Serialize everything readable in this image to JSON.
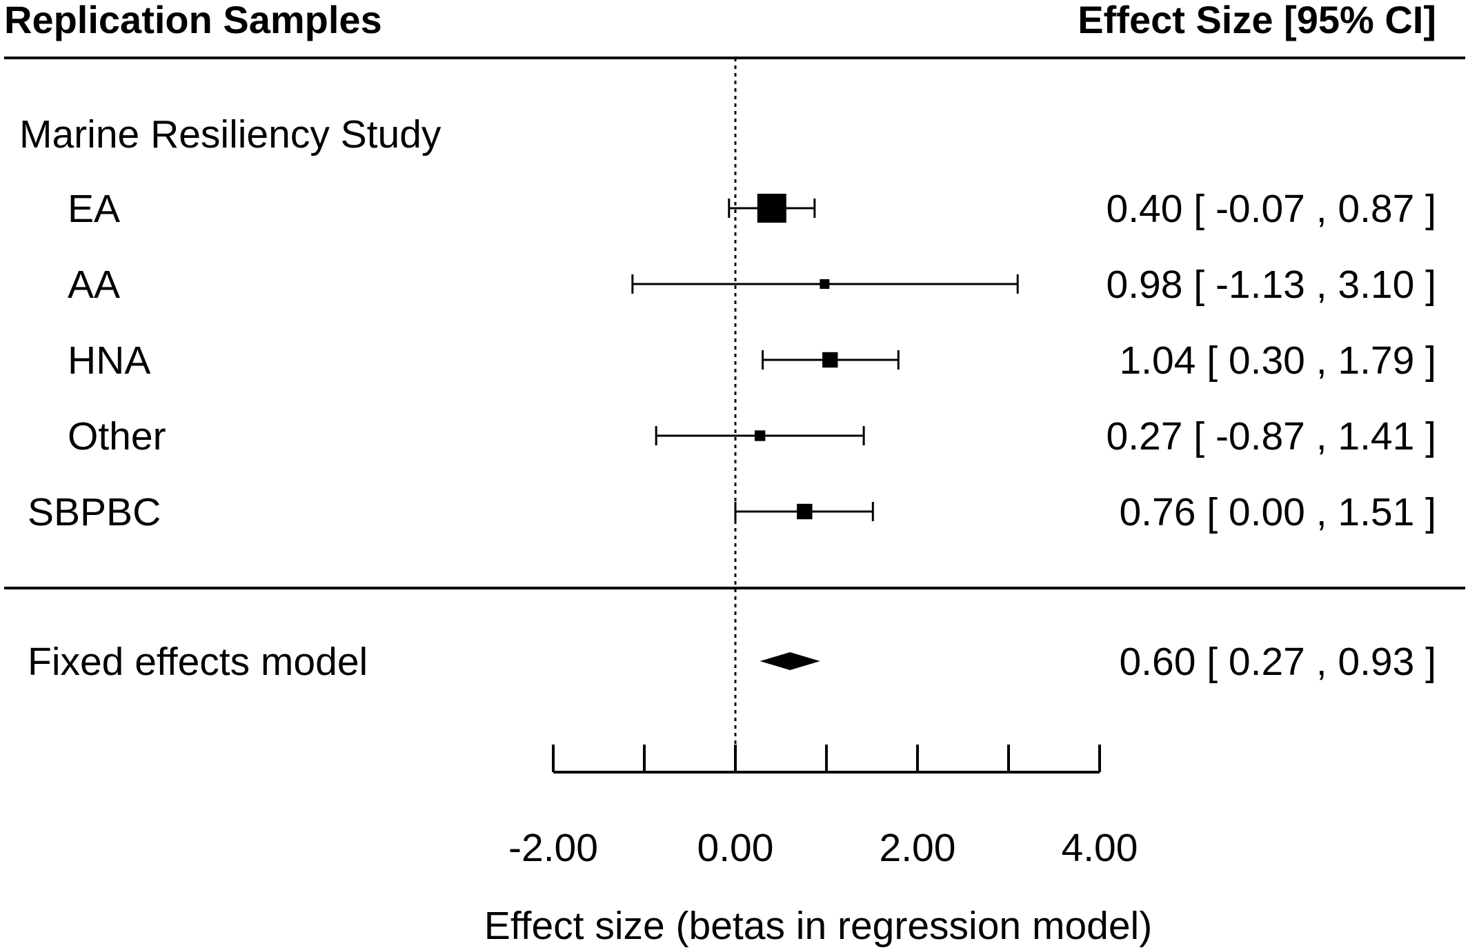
{
  "chart_data": {
    "type": "forest",
    "header_left": "Replication Samples",
    "header_right": "Effect Size [95% CI]",
    "group_label": "Marine Resiliency Study",
    "rows": [
      {
        "label": "EA",
        "indent": true,
        "estimate": 0.4,
        "lower": -0.07,
        "upper": 0.87,
        "weight": 3.0,
        "ci_text": "0.40 [ -0.07 , 0.87 ]"
      },
      {
        "label": "AA",
        "indent": true,
        "estimate": 0.98,
        "lower": -1.13,
        "upper": 3.1,
        "weight": 1.0,
        "ci_text": "0.98 [ -1.13 , 3.10 ]"
      },
      {
        "label": "HNA",
        "indent": true,
        "estimate": 1.04,
        "lower": 0.3,
        "upper": 1.79,
        "weight": 1.6,
        "ci_text": "1.04 [  0.30 , 1.79 ]"
      },
      {
        "label": "Other",
        "indent": true,
        "estimate": 0.27,
        "lower": -0.87,
        "upper": 1.41,
        "weight": 1.1,
        "ci_text": "0.27 [ -0.87 , 1.41 ]"
      },
      {
        "label": "SBPBC",
        "indent": false,
        "estimate": 0.76,
        "lower": 0.0,
        "upper": 1.51,
        "weight": 1.6,
        "ci_text": "0.76 [  0.00 , 1.51 ]"
      }
    ],
    "summary": {
      "label": "Fixed effects model",
      "estimate": 0.6,
      "lower": 0.27,
      "upper": 0.93,
      "ci_text": "0.60 [  0.27 , 0.93 ]"
    },
    "reference_line": 0,
    "xlim": [
      -2,
      4
    ],
    "ticks": [
      -2,
      -1,
      0,
      1,
      2,
      3,
      4
    ],
    "tick_labels": [
      "-2.00",
      "0.00",
      "2.00",
      "4.00"
    ],
    "tick_label_values": [
      -2,
      0,
      2,
      4
    ],
    "xlabel": "Effect size (betas in regression model)"
  }
}
